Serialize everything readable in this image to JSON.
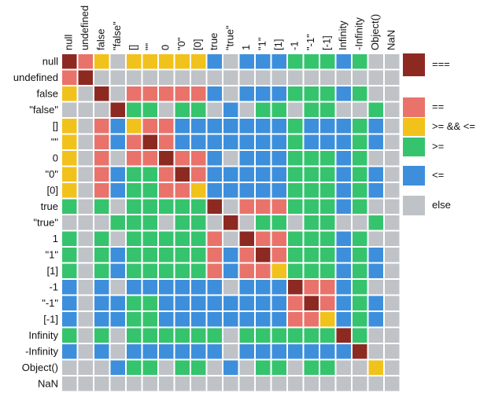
{
  "labels": [
    "null",
    "undefined",
    "false",
    "\"false\"",
    "[]",
    "\"\"",
    "0",
    "\"0\"",
    "[0]",
    "true",
    "\"true\"",
    "1",
    "\"1\"",
    "[1]",
    "-1",
    "\"-1\"",
    "[-1]",
    "Infinity",
    "-Infinity",
    "Object()",
    "NaN"
  ],
  "legend": [
    {
      "label": "===",
      "color": "#8c2a22"
    },
    {
      "label": "==",
      "color": "#e9736b"
    },
    {
      "label": ">= && <=",
      "color": "#f1c21b"
    },
    {
      "label": ">=",
      "color": "#35c46d"
    },
    {
      "label": "<=",
      "color": "#3d8fdc"
    },
    {
      "label": "else",
      "color": "#bfc3c7"
    }
  ],
  "matrix": [
    [
      0,
      1,
      2,
      5,
      2,
      2,
      2,
      2,
      2,
      4,
      5,
      4,
      4,
      4,
      3,
      3,
      3,
      4,
      3,
      5,
      5
    ],
    [
      1,
      0,
      5,
      5,
      5,
      5,
      5,
      5,
      5,
      5,
      5,
      5,
      5,
      5,
      5,
      5,
      5,
      5,
      5,
      5,
      5
    ],
    [
      2,
      5,
      0,
      5,
      1,
      1,
      1,
      1,
      1,
      4,
      5,
      4,
      4,
      4,
      3,
      3,
      3,
      4,
      3,
      5,
      5
    ],
    [
      5,
      5,
      5,
      0,
      3,
      3,
      5,
      3,
      3,
      5,
      4,
      5,
      3,
      3,
      5,
      3,
      3,
      5,
      5,
      3,
      5
    ],
    [
      2,
      5,
      1,
      4,
      2,
      1,
      1,
      4,
      4,
      4,
      4,
      4,
      4,
      4,
      3,
      4,
      4,
      4,
      3,
      4,
      5
    ],
    [
      2,
      5,
      1,
      4,
      1,
      0,
      1,
      4,
      4,
      4,
      4,
      4,
      4,
      4,
      3,
      4,
      4,
      4,
      3,
      4,
      5
    ],
    [
      2,
      5,
      1,
      5,
      1,
      1,
      0,
      1,
      1,
      4,
      5,
      4,
      4,
      4,
      3,
      3,
      3,
      4,
      3,
      5,
      5
    ],
    [
      2,
      5,
      1,
      4,
      3,
      3,
      1,
      0,
      1,
      4,
      4,
      4,
      4,
      4,
      3,
      3,
      3,
      4,
      3,
      4,
      5
    ],
    [
      2,
      5,
      1,
      4,
      3,
      3,
      1,
      1,
      2,
      4,
      4,
      4,
      4,
      4,
      3,
      3,
      3,
      4,
      3,
      4,
      5
    ],
    [
      3,
      5,
      3,
      5,
      3,
      3,
      3,
      3,
      3,
      0,
      5,
      1,
      1,
      1,
      3,
      3,
      3,
      4,
      3,
      5,
      5
    ],
    [
      5,
      5,
      5,
      3,
      3,
      3,
      5,
      3,
      3,
      5,
      0,
      5,
      3,
      3,
      5,
      3,
      3,
      5,
      5,
      3,
      5
    ],
    [
      3,
      5,
      3,
      5,
      3,
      3,
      3,
      3,
      3,
      1,
      5,
      0,
      1,
      1,
      3,
      3,
      3,
      4,
      3,
      5,
      5
    ],
    [
      3,
      5,
      3,
      4,
      3,
      3,
      3,
      3,
      3,
      1,
      4,
      1,
      0,
      1,
      3,
      3,
      3,
      4,
      3,
      4,
      5
    ],
    [
      3,
      5,
      3,
      4,
      3,
      3,
      3,
      3,
      3,
      1,
      4,
      1,
      1,
      2,
      3,
      3,
      3,
      4,
      3,
      4,
      5
    ],
    [
      4,
      5,
      4,
      5,
      4,
      4,
      4,
      4,
      4,
      4,
      5,
      4,
      4,
      4,
      0,
      1,
      1,
      4,
      3,
      5,
      5
    ],
    [
      4,
      5,
      4,
      4,
      3,
      3,
      4,
      4,
      4,
      4,
      4,
      4,
      4,
      4,
      1,
      0,
      1,
      4,
      3,
      4,
      5
    ],
    [
      4,
      5,
      4,
      4,
      3,
      3,
      4,
      4,
      4,
      4,
      4,
      4,
      4,
      4,
      1,
      1,
      2,
      4,
      3,
      4,
      5
    ],
    [
      3,
      5,
      3,
      5,
      3,
      3,
      3,
      3,
      3,
      3,
      5,
      3,
      3,
      3,
      3,
      3,
      3,
      0,
      3,
      5,
      5
    ],
    [
      4,
      5,
      4,
      5,
      4,
      4,
      4,
      4,
      4,
      4,
      5,
      4,
      4,
      4,
      4,
      4,
      4,
      4,
      0,
      5,
      5
    ],
    [
      5,
      5,
      5,
      4,
      3,
      3,
      5,
      3,
      3,
      5,
      4,
      5,
      3,
      3,
      5,
      3,
      3,
      5,
      5,
      2,
      5
    ],
    [
      5,
      5,
      5,
      5,
      5,
      5,
      5,
      5,
      5,
      5,
      5,
      5,
      5,
      5,
      5,
      5,
      5,
      5,
      5,
      5,
      5
    ]
  ]
}
